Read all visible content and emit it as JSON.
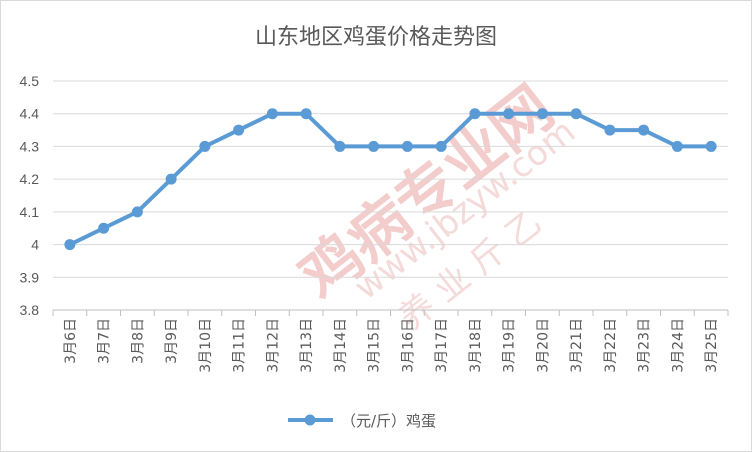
{
  "chart_data": {
    "type": "line",
    "title": "山东地区鸡蛋价格走势图",
    "categories": [
      "3月6日",
      "3月7日",
      "3月8日",
      "3月9日",
      "3月10日",
      "3月11日",
      "3月12日",
      "3月13日",
      "3月14日",
      "3月15日",
      "3月16日",
      "3月17日",
      "3月18日",
      "3月19日",
      "3月20日",
      "3月21日",
      "3月22日",
      "3月23日",
      "3月24日",
      "3月25日"
    ],
    "series": [
      {
        "name": "（元/斤）鸡蛋",
        "values": [
          4.0,
          4.05,
          4.1,
          4.2,
          4.3,
          4.35,
          4.4,
          4.4,
          4.3,
          4.3,
          4.3,
          4.3,
          4.4,
          4.4,
          4.4,
          4.4,
          4.35,
          4.35,
          4.3,
          4.3
        ],
        "color": "#5b9bd5"
      }
    ],
    "ylim": [
      3.8,
      4.5
    ],
    "yticks": [
      "3.8",
      "3.9",
      "4",
      "4.1",
      "4.2",
      "4.3",
      "4.4",
      "4.5"
    ],
    "grid": true,
    "legend": "bottom"
  },
  "watermark": {
    "main": "鸡病专业网",
    "url": "www.jbzyw.com",
    "sub": "养 业 斤 乙"
  }
}
